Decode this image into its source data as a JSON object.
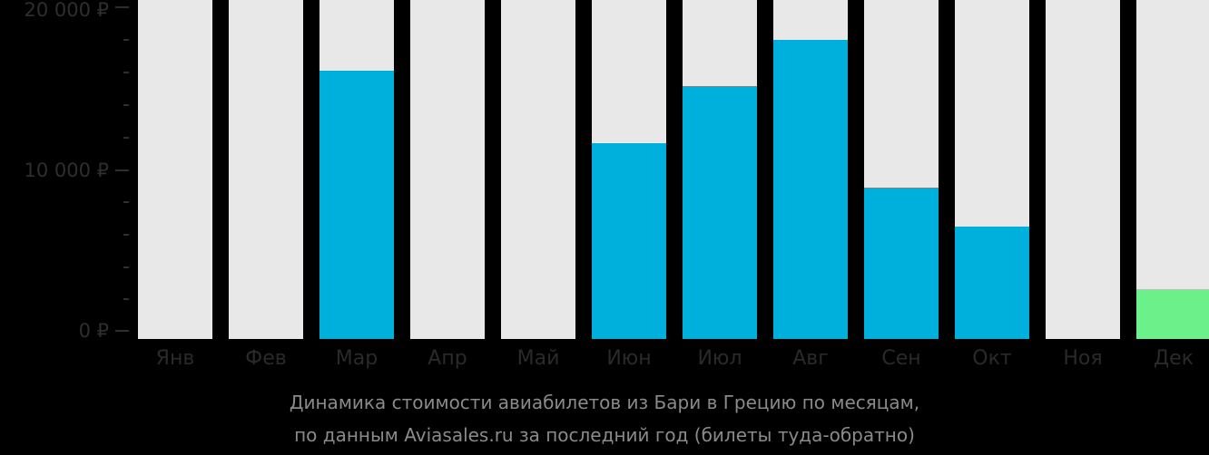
{
  "chart_data": {
    "type": "bar",
    "title": "Динамика стоимости авиабилетов из Бари в Грецию по месяцам,",
    "subtitle": "по данным Aviasales.ru за последний год (билеты туда-обратно)",
    "xlabel": "",
    "ylabel": "",
    "ylim": [
      0,
      20000
    ],
    "y_ticks": [
      "0 ₽",
      "10 000 ₽",
      "20 000 ₽"
    ],
    "grid": false,
    "legend": null,
    "categories": [
      "Янв",
      "Фев",
      "Мар",
      "Апр",
      "Май",
      "Июн",
      "Июл",
      "Авг",
      "Сен",
      "Окт",
      "Ноя",
      "Дек"
    ],
    "values": [
      null,
      null,
      16100,
      null,
      null,
      11600,
      15100,
      18000,
      8850,
      6450,
      null,
      2550
    ],
    "bar_colors": [
      "#00b0dc",
      "#00b0dc",
      "#00b0dc",
      "#00b0dc",
      "#00b0dc",
      "#00b0dc",
      "#00b0dc",
      "#00b0dc",
      "#00b0dc",
      "#00b0dc",
      "#00b0dc",
      "#6cf08a"
    ]
  },
  "colors": {
    "background": "#000000",
    "bar_background": "#e8e8e8",
    "bar_default": "#00b0dc",
    "bar_cheapest": "#6cf08a",
    "axis_text": "#2e2e2e",
    "caption_text": "#8a8a8a"
  },
  "axis": {
    "y_labels": [
      "20 000 ₽",
      "10 000 ₽",
      "0 ₽"
    ]
  },
  "caption": {
    "line1": "Динамика стоимости авиабилетов из Бари в Грецию по месяцам,",
    "line2": "по данным Aviasales.ru за последний год (билеты туда-обратно)"
  }
}
